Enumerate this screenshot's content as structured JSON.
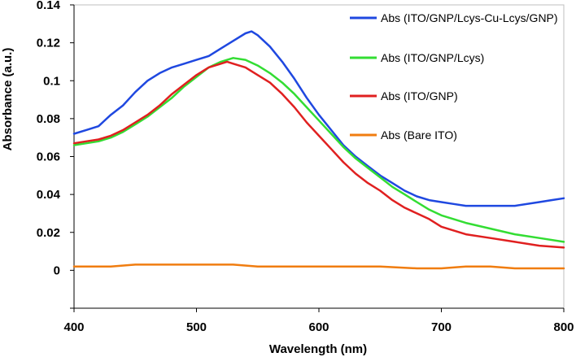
{
  "chart_data": {
    "type": "line",
    "title": "",
    "xlabel": "Wavelength (nm)",
    "ylabel": "Absorbance (a.u.)",
    "xlim": [
      400,
      800
    ],
    "ylim": [
      -0.02,
      0.14
    ],
    "xticks": [
      400,
      500,
      600,
      700,
      800
    ],
    "xtick_labels": [
      "400",
      "500",
      "600",
      "700",
      "800"
    ],
    "yticks": [
      0,
      0.02,
      0.04,
      0.06,
      0.08,
      0.1,
      0.12,
      0.14
    ],
    "ytick_labels": [
      "0",
      "0.02",
      "0.04",
      "0.06",
      "0.08",
      "0.1",
      "0.12",
      "0.14"
    ],
    "grid": false,
    "legend_position": "right",
    "series": [
      {
        "name": "Abs (ITO/GNP/Lcys-Cu-Lcys/GNP)",
        "color": "#1f48e0",
        "x": [
          400,
          410,
          420,
          430,
          440,
          450,
          460,
          470,
          480,
          490,
          500,
          510,
          520,
          530,
          540,
          545,
          550,
          560,
          570,
          580,
          590,
          600,
          610,
          620,
          630,
          640,
          650,
          660,
          670,
          680,
          690,
          700,
          710,
          720,
          740,
          760,
          780,
          790,
          800
        ],
        "y": [
          0.072,
          0.074,
          0.076,
          0.082,
          0.087,
          0.094,
          0.1,
          0.104,
          0.107,
          0.109,
          0.111,
          0.113,
          0.117,
          0.121,
          0.125,
          0.126,
          0.124,
          0.118,
          0.11,
          0.101,
          0.091,
          0.082,
          0.074,
          0.066,
          0.06,
          0.055,
          0.05,
          0.046,
          0.042,
          0.039,
          0.037,
          0.036,
          0.035,
          0.034,
          0.034,
          0.034,
          0.036,
          0.037,
          0.038
        ]
      },
      {
        "name": "Abs (ITO/GNP/Lcys)",
        "color": "#33dd33",
        "x": [
          400,
          410,
          420,
          430,
          440,
          450,
          460,
          470,
          480,
          490,
          500,
          510,
          520,
          530,
          540,
          550,
          560,
          570,
          580,
          590,
          600,
          610,
          620,
          630,
          640,
          650,
          660,
          670,
          680,
          690,
          700,
          720,
          740,
          760,
          780,
          800
        ],
        "y": [
          0.066,
          0.067,
          0.068,
          0.07,
          0.073,
          0.077,
          0.081,
          0.086,
          0.091,
          0.097,
          0.102,
          0.107,
          0.11,
          0.112,
          0.111,
          0.108,
          0.104,
          0.099,
          0.093,
          0.086,
          0.079,
          0.072,
          0.065,
          0.059,
          0.054,
          0.049,
          0.044,
          0.04,
          0.036,
          0.032,
          0.029,
          0.025,
          0.022,
          0.019,
          0.017,
          0.015
        ]
      },
      {
        "name": "Abs (ITO/GNP)",
        "color": "#e02020",
        "x": [
          400,
          410,
          420,
          430,
          440,
          450,
          460,
          470,
          480,
          490,
          500,
          510,
          520,
          525,
          530,
          540,
          550,
          560,
          570,
          580,
          590,
          600,
          610,
          620,
          630,
          640,
          650,
          660,
          670,
          680,
          690,
          700,
          720,
          740,
          760,
          780,
          800
        ],
        "y": [
          0.067,
          0.068,
          0.069,
          0.071,
          0.074,
          0.078,
          0.082,
          0.087,
          0.093,
          0.098,
          0.103,
          0.107,
          0.109,
          0.11,
          0.109,
          0.107,
          0.103,
          0.099,
          0.093,
          0.086,
          0.078,
          0.071,
          0.064,
          0.057,
          0.051,
          0.046,
          0.042,
          0.037,
          0.033,
          0.03,
          0.027,
          0.023,
          0.019,
          0.017,
          0.015,
          0.013,
          0.012
        ]
      },
      {
        "name": "Abs (Bare ITO)",
        "color": "#f07d10",
        "x": [
          400,
          410,
          430,
          450,
          470,
          490,
          510,
          530,
          550,
          600,
          650,
          680,
          700,
          720,
          740,
          760,
          780,
          800
        ],
        "y": [
          0.002,
          0.002,
          0.002,
          0.003,
          0.003,
          0.003,
          0.003,
          0.003,
          0.002,
          0.002,
          0.002,
          0.001,
          0.001,
          0.002,
          0.002,
          0.001,
          0.001,
          0.001
        ]
      }
    ]
  }
}
